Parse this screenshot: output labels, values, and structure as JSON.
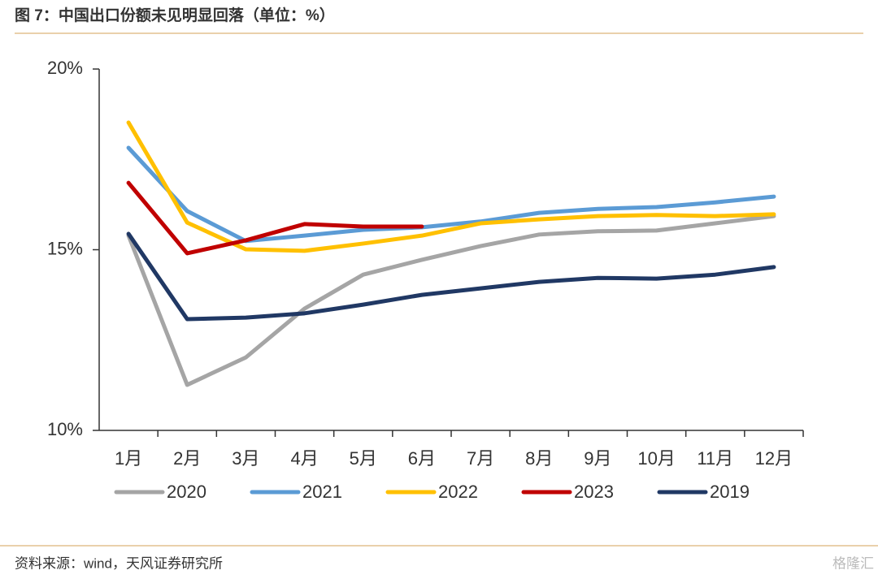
{
  "chart_data": {
    "type": "line",
    "title": "图 7：中国出口份额未见明显回落（单位：%）",
    "source": "资料来源：wind，天风证券研究所",
    "watermark": "格隆汇",
    "categories": [
      "1月",
      "2月",
      "3月",
      "4月",
      "5月",
      "6月",
      "7月",
      "8月",
      "9月",
      "10月",
      "11月",
      "12月"
    ],
    "series": [
      {
        "name": "2020",
        "color": "#a5a5a5",
        "values": [
          15.39,
          11.26,
          12.02,
          13.37,
          14.31,
          14.72,
          15.1,
          15.42,
          15.51,
          15.53,
          15.73,
          15.93
        ]
      },
      {
        "name": "2021",
        "color": "#5b9bd5",
        "values": [
          17.82,
          16.07,
          15.24,
          15.39,
          15.55,
          15.62,
          15.78,
          16.02,
          16.13,
          16.18,
          16.31,
          16.47
        ]
      },
      {
        "name": "2022",
        "color": "#ffc000",
        "values": [
          18.52,
          15.75,
          15.01,
          14.97,
          15.17,
          15.39,
          15.73,
          15.84,
          15.93,
          15.96,
          15.93,
          15.98
        ]
      },
      {
        "name": "2023",
        "color": "#c00000",
        "values": [
          16.85,
          14.9,
          15.26,
          15.71,
          15.64,
          15.64,
          null,
          null,
          null,
          null,
          null,
          null
        ]
      },
      {
        "name": "2019",
        "color": "#203864",
        "values": [
          15.44,
          13.08,
          13.12,
          13.24,
          13.48,
          13.75,
          13.93,
          14.11,
          14.22,
          14.2,
          14.31,
          14.52
        ]
      }
    ],
    "ylim": [
      10,
      20
    ],
    "yticks": [
      {
        "value": 10,
        "label": "10%"
      },
      {
        "value": 15,
        "label": "15%"
      },
      {
        "value": 20,
        "label": "20%"
      }
    ],
    "grid": false,
    "legend": "bottom"
  }
}
